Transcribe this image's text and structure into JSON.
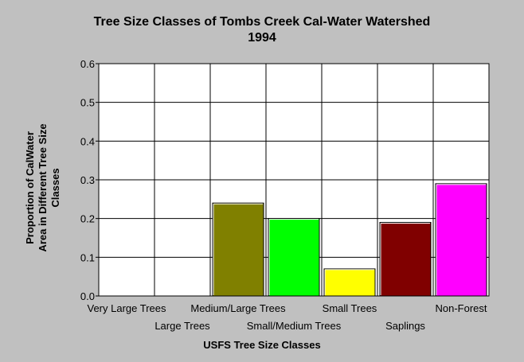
{
  "chart_data": {
    "type": "bar",
    "title": "Tree Size Classes of Tombs Creek Cal-Water Watershed",
    "subtitle": "1994",
    "xlabel": "USFS Tree Size Classes",
    "ylabel": [
      "Proportion of CalWater",
      "Area in Different Tree Size",
      "Classes"
    ],
    "ylim": [
      0,
      0.6
    ],
    "yticks": [
      "0.0",
      "0.1",
      "0.2",
      "0.3",
      "0.4",
      "0.5",
      "0.6"
    ],
    "categories": [
      "Very Large Trees",
      "Large Trees",
      "Medium/Large Trees",
      "Small/Medium Trees",
      "Small Trees",
      "Saplings",
      "Non-Forest"
    ],
    "values": [
      0,
      0,
      0.24,
      0.2,
      0.07,
      0.19,
      0.29
    ],
    "colors": [
      "#808080",
      "#808080",
      "#808000",
      "#00ff00",
      "#ffff00",
      "#800000",
      "#ff00ff"
    ],
    "grid": true,
    "plot_background": "#ffffff",
    "page_background": "#c0c0c0"
  }
}
